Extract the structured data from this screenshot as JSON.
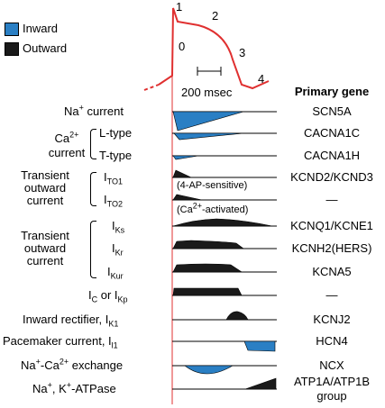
{
  "legend": {
    "inward": "Inward",
    "outward": "Outward",
    "inward_color": "#2a7fc4",
    "outward_color": "#1a1a1a"
  },
  "action_potential": {
    "phases": [
      "0",
      "1",
      "2",
      "3",
      "4"
    ],
    "scale_label": "200 msec",
    "color": "#e03030"
  },
  "header": {
    "primary_gene": "Primary gene"
  },
  "rows": {
    "na": {
      "label": "Na",
      "sup": "+",
      "tail": " current",
      "gene": "SCN5A"
    },
    "ca_group": {
      "main": "Ca",
      "sup": "2+",
      "tail": "current"
    },
    "ltype": {
      "label": "L-type",
      "gene": "CACNA1C"
    },
    "ttype": {
      "label": "T-type",
      "gene": "CACNA1H"
    },
    "to_group": {
      "line1": "Transient",
      "line2": "outward",
      "line3": "current"
    },
    "ito1": {
      "label": "I",
      "sub": "TO1",
      "gene": "KCND2/KCND3",
      "note": "(4-AP-sensitive)"
    },
    "ito2": {
      "label": "I",
      "sub": "TO2",
      "gene": "—",
      "note_pre": "(Ca",
      "note_sup": "2+",
      "note_post": "-activated)"
    },
    "delayed_group": {
      "line1": "Transient",
      "line2": "outward",
      "line3": "current"
    },
    "iks": {
      "label": "I",
      "sub": "Ks",
      "gene": "KCNQ1/KCNE1"
    },
    "ikr": {
      "label": "I",
      "sub": "Kr",
      "gene": "KCNH2(HERS)"
    },
    "ikur": {
      "label": "I",
      "sub": "Kur",
      "gene": "KCNA5"
    },
    "ic": {
      "a": "I",
      "a_sub": "C",
      "mid": " or I",
      "b_sub": "Kp",
      "gene": "—"
    },
    "ik1": {
      "label": "Inward rectifier, I",
      "sub": "K1",
      "gene": "KCNJ2"
    },
    "if": {
      "label": "Pacemaker current, I",
      "sub": "l1",
      "gene": "HCN4"
    },
    "ncx": {
      "label_a": "Na",
      "sup_a": "+",
      "label_b": "-Ca",
      "sup_b": "2+",
      "tail": " exchange",
      "gene": "NCX"
    },
    "atpase": {
      "label_a": "Na",
      "sup_a": "+",
      "mid": ", K",
      "sup_b": "+",
      "tail": "-ATPase",
      "gene_line1": "ATP1A/ATP1B",
      "gene_line2": "group"
    }
  }
}
